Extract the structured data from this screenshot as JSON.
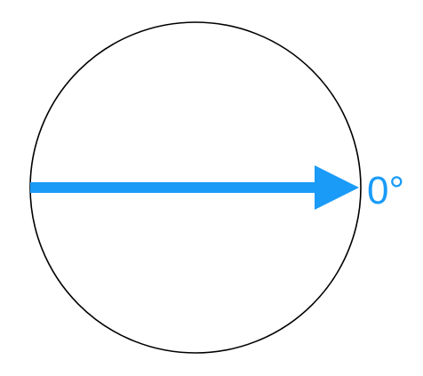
{
  "diagram": {
    "angle_label": "0°",
    "colors": {
      "circle_stroke": "#000000",
      "arrow": "#1a9bf7",
      "label": "#1a9bf7",
      "background": "#ffffff"
    }
  }
}
